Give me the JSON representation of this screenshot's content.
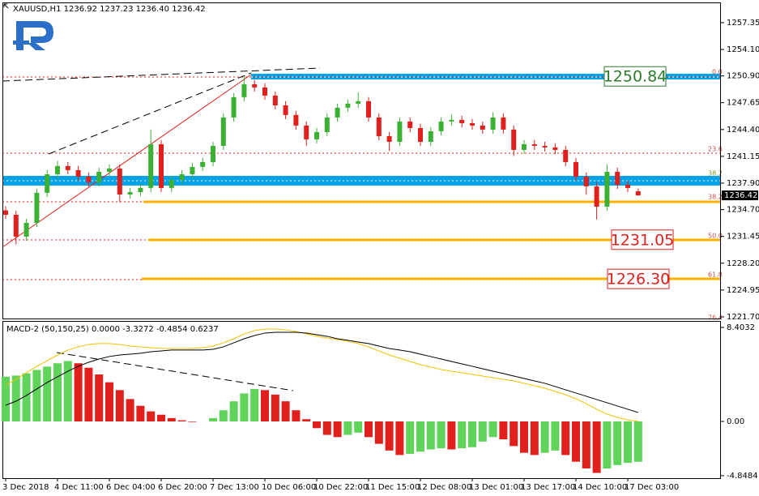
{
  "header": "XAUUSD,H1  1236.92 1237.23 1236.40 1236.42",
  "fib_labels": [
    "0.0",
    "23.6",
    "38.2",
    "38.2",
    "50.0",
    "61.8",
    "76.4"
  ],
  "chart_data": [
    {
      "type": "candlestick",
      "categories": [
        "3 Dec 2018",
        null,
        null,
        null,
        null,
        "4 Dec 11:00",
        null,
        null,
        null,
        null,
        "6 Dec 04:00",
        null,
        null,
        null,
        null,
        "6 Dec 20:00",
        null,
        null,
        null,
        null,
        "7 Dec 13:00",
        null,
        null,
        null,
        null,
        "10 Dec 06:00",
        null,
        null,
        null,
        null,
        "10 Dec 22:00",
        null,
        null,
        null,
        null,
        "11 Dec 15:00",
        null,
        null,
        null,
        null,
        "12 Dec 08:00",
        null,
        null,
        null,
        null,
        "13 Dec 01:00",
        null,
        null,
        null,
        null,
        "13 Dec 17:00",
        null,
        null,
        null,
        null,
        "14 Dec 10:00",
        null,
        null,
        null,
        null,
        "17 Dec 03:00",
        null
      ],
      "open": [
        1234.6,
        1234.07,
        1231.42,
        1233.09,
        1236.73,
        1238.98,
        1239.97,
        1239.48,
        1238.69,
        1238.0,
        1239.28,
        1239.67,
        1236.53,
        1236.82,
        1237.32,
        1242.62,
        1237.32,
        1238.3,
        1238.98,
        1239.87,
        1240.46,
        1242.42,
        1245.86,
        1248.32,
        1249.89,
        1249.5,
        1248.51,
        1247.33,
        1246.16,
        1244.88,
        1243.21,
        1244.09,
        1245.86,
        1247.04,
        1247.53,
        1247.83,
        1245.86,
        1243.6,
        1242.91,
        1245.37,
        1244.58,
        1242.91,
        1244.19,
        1245.37,
        1245.57,
        1245.17,
        1244.88,
        1244.39,
        1245.86,
        1244.39,
        1241.93,
        1242.62,
        1242.42,
        1242.23,
        1241.93,
        1240.46,
        1238.69,
        1237.51,
        1235.05,
        1239.28,
        1237.71,
        1236.92
      ],
      "high": [
        1235.1,
        1234.57,
        1233.59,
        1237.23,
        1239.48,
        1240.6,
        1240.47,
        1239.98,
        1239.19,
        1239.78,
        1240.17,
        1240.17,
        1237.32,
        1237.82,
        1244.4,
        1243.12,
        1238.8,
        1239.48,
        1240.37,
        1240.96,
        1242.92,
        1246.36,
        1248.82,
        1250.84,
        1250.39,
        1250.0,
        1249.01,
        1247.83,
        1246.66,
        1245.38,
        1244.59,
        1246.36,
        1247.54,
        1248.03,
        1248.9,
        1248.33,
        1246.36,
        1244.1,
        1245.87,
        1245.87,
        1245.08,
        1244.69,
        1245.87,
        1246.2,
        1246.07,
        1245.67,
        1245.38,
        1246.5,
        1246.36,
        1244.89,
        1243.12,
        1243.12,
        1242.92,
        1242.73,
        1242.43,
        1240.96,
        1239.19,
        1238.01,
        1240.2,
        1239.78,
        1238.21,
        1237.23
      ],
      "low": [
        1233.57,
        1230.5,
        1230.92,
        1232.59,
        1236.23,
        1238.48,
        1238.98,
        1238.19,
        1237.5,
        1237.5,
        1238.78,
        1235.6,
        1236.03,
        1236.32,
        1236.82,
        1236.82,
        1236.82,
        1237.8,
        1238.48,
        1239.37,
        1239.96,
        1241.92,
        1245.36,
        1247.82,
        1249.0,
        1248.01,
        1246.83,
        1245.66,
        1244.38,
        1242.4,
        1242.71,
        1243.59,
        1245.36,
        1246.54,
        1247.03,
        1245.36,
        1243.1,
        1241.8,
        1242.41,
        1244.08,
        1242.41,
        1242.41,
        1243.69,
        1244.87,
        1244.67,
        1244.38,
        1243.89,
        1243.89,
        1243.89,
        1241.2,
        1241.43,
        1241.92,
        1241.73,
        1241.43,
        1239.96,
        1238.19,
        1236.5,
        1233.5,
        1234.55,
        1237.21,
        1236.82,
        1236.4
      ],
      "close": [
        1234.07,
        1231.42,
        1233.09,
        1236.73,
        1238.98,
        1239.97,
        1239.48,
        1238.69,
        1238.0,
        1239.28,
        1239.67,
        1236.53,
        1236.82,
        1237.32,
        1242.62,
        1237.32,
        1238.3,
        1238.98,
        1239.87,
        1240.46,
        1242.42,
        1245.86,
        1248.32,
        1249.89,
        1249.5,
        1248.51,
        1247.33,
        1246.16,
        1244.88,
        1243.21,
        1244.09,
        1245.86,
        1247.04,
        1247.53,
        1247.83,
        1245.86,
        1243.6,
        1242.91,
        1245.37,
        1244.58,
        1242.91,
        1244.19,
        1245.37,
        1245.57,
        1245.17,
        1244.88,
        1244.39,
        1245.86,
        1244.39,
        1241.93,
        1242.62,
        1242.42,
        1242.23,
        1241.93,
        1240.46,
        1238.69,
        1237.51,
        1235.05,
        1239.28,
        1237.71,
        1237.32,
        1236.42
      ],
      "up_color": "#3cb034",
      "down_color": "#e0201c",
      "ylim": [
        1221.5,
        1259.8
      ],
      "yticks": [
        1257.35,
        {
          "value": 1254.1,
          "label": "1254.10"
        },
        {
          "value": 1250.9,
          "label": "1250.90"
        },
        1247.65,
        {
          "value": 1244.4,
          "label": "1244.40"
        },
        1241.15,
        {
          "value": 1237.9,
          "label": "1237.90"
        },
        {
          "value": 1234.7,
          "label": "1234.70"
        },
        1231.45,
        {
          "value": 1228.2,
          "label": "1228.20"
        },
        1224.95,
        {
          "value": 1221.7,
          "label": "1221.70"
        }
      ],
      "last_price": 1236.42,
      "levels": [
        {
          "value": 1250.84,
          "label": "1250.84",
          "color": "#2a7a2a"
        },
        {
          "value": 1231.05,
          "label": "1231.05",
          "color": "#e0201c"
        },
        {
          "value": 1226.3,
          "label": "1226.30",
          "color": "#e0201c"
        }
      ]
    },
    {
      "type": "macd",
      "title": "MACD-2 (50,150,25) 0.0000 -3.3272 -0.4854 0.6237",
      "histogram": [
        4.0,
        4.1,
        4.3,
        4.6,
        4.9,
        5.2,
        5.4,
        5.2,
        4.8,
        4.2,
        3.5,
        2.8,
        2.0,
        1.4,
        0.9,
        0.6,
        0.3,
        0.1,
        -0.05,
        0.0,
        0.3,
        1.0,
        1.8,
        2.5,
        2.9,
        2.8,
        2.4,
        1.8,
        1.0,
        0.2,
        -0.6,
        -1.2,
        -1.4,
        -1.2,
        -1.0,
        -1.4,
        -2.0,
        -2.6,
        -3.0,
        -2.9,
        -2.7,
        -2.5,
        -2.4,
        -2.5,
        -2.4,
        -2.3,
        -1.8,
        -1.4,
        -1.6,
        -2.2,
        -2.8,
        -3.0,
        -2.8,
        -2.6,
        -3.0,
        -3.6,
        -4.2,
        -4.6,
        -4.2,
        -3.9,
        -3.7,
        -3.6
      ],
      "main_line": {
        "color": "#000000",
        "values": [
          1.45,
          1.81,
          2.32,
          2.9,
          3.48,
          3.99,
          4.49,
          4.93,
          5.29,
          5.58,
          5.8,
          5.94,
          6.01,
          6.09,
          6.23,
          6.3,
          6.38,
          6.38,
          6.38,
          6.38,
          6.45,
          6.67,
          7.03,
          7.39,
          7.68,
          7.9,
          7.97,
          7.97,
          7.97,
          7.9,
          7.75,
          7.61,
          7.39,
          7.25,
          7.1,
          6.96,
          6.74,
          6.52,
          6.38,
          6.23,
          6.01,
          5.8,
          5.58,
          5.36,
          5.14,
          4.93,
          4.71,
          4.49,
          4.28,
          4.06,
          3.84,
          3.62,
          3.41,
          3.12,
          2.83,
          2.54,
          2.25,
          1.96,
          1.67,
          1.38,
          1.09,
          0.8
        ]
      },
      "signal_line": {
        "color": "#f0c000",
        "values": [
          3.26,
          3.77,
          4.35,
          4.93,
          5.43,
          5.94,
          6.38,
          6.67,
          6.88,
          6.96,
          6.96,
          6.88,
          6.74,
          6.67,
          6.59,
          6.52,
          6.52,
          6.52,
          6.52,
          6.59,
          6.74,
          7.03,
          7.39,
          7.83,
          8.12,
          8.26,
          8.26,
          8.19,
          8.04,
          7.83,
          7.61,
          7.46,
          7.32,
          7.17,
          6.96,
          6.67,
          6.3,
          5.94,
          5.65,
          5.36,
          5.07,
          4.86,
          4.64,
          4.49,
          4.35,
          4.2,
          4.06,
          3.91,
          3.77,
          3.62,
          3.41,
          3.19,
          2.97,
          2.68,
          2.39,
          2.03,
          1.59,
          1.09,
          0.65,
          0.36,
          0.14,
          0.0
        ]
      },
      "up_color": "#5fd35a",
      "down_color": "#e0201c",
      "ylim": [
        -5.07,
        8.91
      ],
      "yticks": [
        8.4032,
        {
          "value": 0,
          "label": "0.00"
        },
        -4.8484
      ]
    }
  ]
}
